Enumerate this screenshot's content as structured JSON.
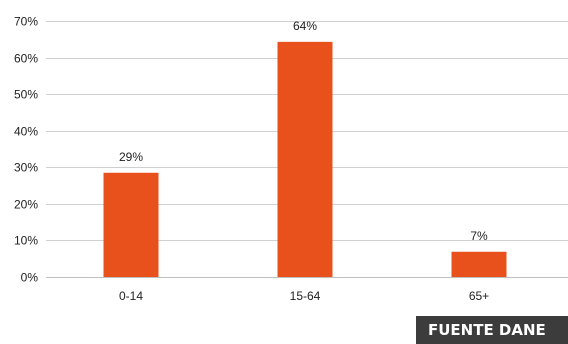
{
  "chart_data": {
    "type": "bar",
    "categories": [
      "0-14",
      "15-64",
      "65+"
    ],
    "values": [
      28.5,
      64.3,
      6.9
    ],
    "data_labels": [
      "29%",
      "64%",
      "7%"
    ],
    "ylim": [
      0,
      70
    ],
    "y_ticks": [
      0,
      10,
      20,
      30,
      40,
      50,
      60,
      70
    ],
    "y_tick_labels": [
      "0%",
      "10%",
      "20%",
      "30%",
      "40%",
      "50%",
      "60%",
      "70%"
    ],
    "grid": true,
    "legend": "none",
    "bar_color": "#e9511c",
    "title": "",
    "xlabel": "",
    "ylabel": ""
  },
  "source": {
    "label": "FUENTE DANE"
  }
}
